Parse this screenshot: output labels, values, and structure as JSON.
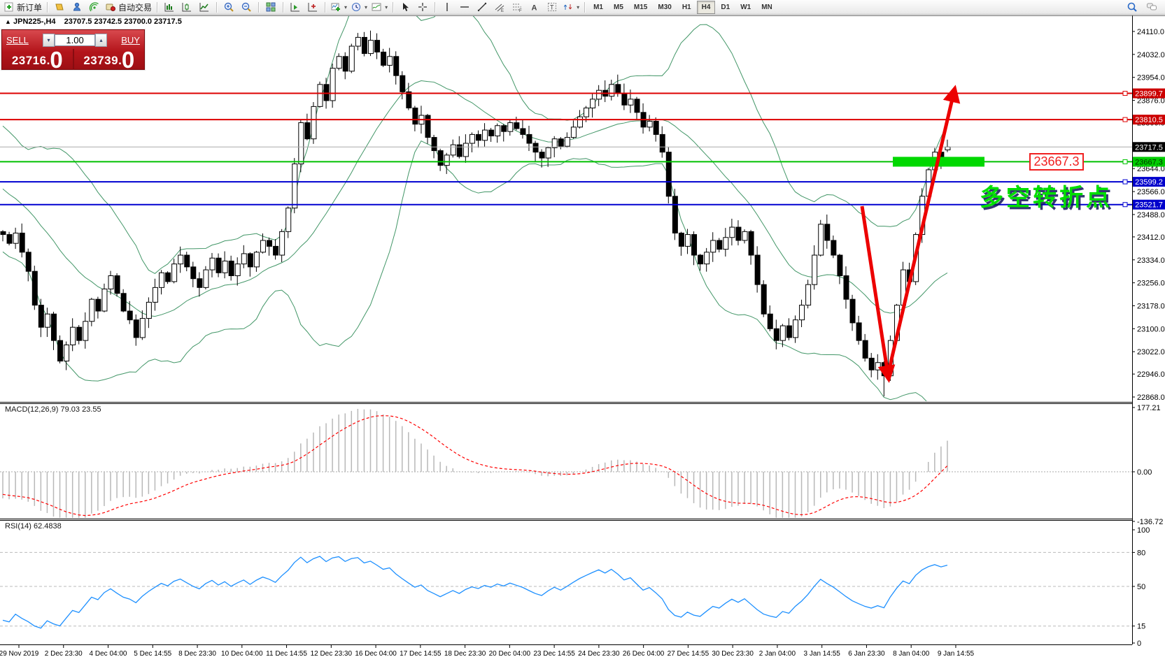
{
  "header": {
    "symbol_line": "JPN225-,H4",
    "ohlc": "23707.5 23742.5 23700.0 23717.5"
  },
  "trade_panel": {
    "sell_label": "SELL",
    "buy_label": "BUY",
    "volume": "1.00",
    "sell_int": "23716",
    "sell_big": "0",
    "buy_int": "23739",
    "buy_big": "0"
  },
  "toolbar": {
    "groups": [
      {
        "items": [
          {
            "icon": "new-order",
            "label": "新订单",
            "name": "new-order-button"
          }
        ]
      },
      {
        "items": [
          {
            "icon": "profile",
            "name": "profiles-button"
          },
          {
            "icon": "market-watch",
            "name": "market-watch-button"
          },
          {
            "icon": "signal",
            "name": "signals-button"
          },
          {
            "icon": "autotrading",
            "label": "自动交易",
            "name": "autotrading-button"
          }
        ]
      },
      {
        "items": [
          {
            "icon": "bar-chart",
            "name": "bar-chart-button"
          },
          {
            "icon": "candle-chart",
            "name": "candlestick-chart-button"
          },
          {
            "icon": "line-chart",
            "name": "line-chart-button"
          }
        ]
      },
      {
        "items": [
          {
            "icon": "zoom-in",
            "name": "zoom-in-button"
          },
          {
            "icon": "zoom-out",
            "name": "zoom-out-button"
          }
        ]
      },
      {
        "items": [
          {
            "icon": "tile-windows",
            "name": "tile-windows-button"
          }
        ]
      },
      {
        "items": [
          {
            "icon": "chart-play",
            "name": "auto-scroll-button"
          },
          {
            "icon": "chart-plus",
            "name": "chart-shift-button"
          }
        ]
      },
      {
        "items": [
          {
            "icon": "indicators",
            "dropdown": true,
            "name": "indicators-button"
          },
          {
            "icon": "periods",
            "dropdown": true,
            "name": "periods-button"
          },
          {
            "icon": "templates",
            "dropdown": true,
            "name": "templates-button"
          }
        ]
      },
      {
        "items": [
          {
            "icon": "cursor",
            "name": "cursor-button"
          },
          {
            "icon": "crosshair",
            "name": "crosshair-button"
          }
        ]
      },
      {
        "items": [
          {
            "icon": "vline",
            "name": "vertical-line-button"
          },
          {
            "icon": "hline",
            "name": "horizontal-line-button"
          },
          {
            "icon": "trendline",
            "name": "trendline-button"
          },
          {
            "icon": "channel",
            "name": "equidistant-channel-button"
          },
          {
            "icon": "fibonacci",
            "name": "fibonacci-button"
          },
          {
            "icon": "text",
            "name": "text-button"
          },
          {
            "icon": "text-label",
            "name": "text-label-button"
          },
          {
            "icon": "arrows",
            "dropdown": true,
            "name": "arrows-button"
          }
        ]
      },
      {
        "timeframes": [
          {
            "label": "M1"
          },
          {
            "label": "M5"
          },
          {
            "label": "M15"
          },
          {
            "label": "M30"
          },
          {
            "label": "H1"
          },
          {
            "label": "H4",
            "active": true
          },
          {
            "label": "D1"
          },
          {
            "label": "W1"
          },
          {
            "label": "MN"
          }
        ]
      }
    ],
    "right_items": [
      {
        "icon": "search",
        "name": "search-button"
      },
      {
        "icon": "chat",
        "name": "chat-button"
      }
    ]
  },
  "chart_data": {
    "type": "candlestick",
    "symbol": "JPN225-",
    "timeframe": "H4",
    "title": "JPN225-,H4",
    "ohlc_header": [
      "23707.5",
      "23742.5",
      "23700.0",
      "23717.5"
    ],
    "y_ticks": [
      "24110.0",
      "24032.0",
      "23954.0",
      "23876.0",
      "23800.0",
      "23644.0",
      "23566.0",
      "23488.0",
      "23412.0",
      "23334.0",
      "23256.0",
      "23178.0",
      "23100.0",
      "23022.0",
      "22946.0",
      "22868.0"
    ],
    "x_labels": [
      "29 Nov 2019",
      "2 Dec 23:30",
      "4 Dec 04:00",
      "5 Dec 14:55",
      "8 Dec 23:30",
      "10 Dec 04:00",
      "11 Dec 14:55",
      "12 Dec 23:30",
      "16 Dec 04:00",
      "17 Dec 14:55",
      "18 Dec 23:30",
      "20 Dec 04:00",
      "23 Dec 14:55",
      "24 Dec 23:30",
      "26 Dec 04:00",
      "27 Dec 14:55",
      "30 Dec 23:30",
      "2 Jan 04:00",
      "3 Jan 14:55",
      "6 Jan 23:30",
      "8 Jan 04:00",
      "9 Jan 14:55"
    ],
    "candles": {
      "pre_closes": [
        23780,
        23750,
        23720,
        23740,
        23700,
        23660,
        23680,
        23640,
        23600,
        23620,
        23580,
        23540,
        23560,
        23520,
        23480,
        23500,
        23460,
        23440,
        23460,
        23430
      ],
      "closes": [
        23420,
        23390,
        23425,
        23360,
        23295,
        23180,
        23105,
        23150,
        23060,
        22990,
        23045,
        23105,
        23060,
        23125,
        23200,
        23160,
        23235,
        23280,
        23220,
        23160,
        23130,
        23070,
        23135,
        23190,
        23240,
        23290,
        23260,
        23320,
        23350,
        23310,
        23270,
        23240,
        23300,
        23340,
        23290,
        23330,
        23280,
        23320,
        23355,
        23310,
        23360,
        23400,
        23380,
        23350,
        23430,
        23510,
        23660,
        23800,
        23745,
        23855,
        23930,
        23875,
        23985,
        24025,
        23975,
        24060,
        24090,
        24035,
        24080,
        24040,
        23995,
        24025,
        23960,
        23905,
        23850,
        23795,
        23825,
        23750,
        23705,
        23655,
        23690,
        23725,
        23685,
        23730,
        23760,
        23740,
        23775,
        23755,
        23790,
        23770,
        23800,
        23780,
        23760,
        23730,
        23700,
        23680,
        23715,
        23745,
        23720,
        23750,
        23785,
        23820,
        23850,
        23880,
        23910,
        23890,
        23930,
        23900,
        23860,
        23880,
        23835,
        23785,
        23805,
        23760,
        23700,
        23550,
        23425,
        23380,
        23420,
        23350,
        23320,
        23360,
        23400,
        23370,
        23410,
        23445,
        23400,
        23430,
        23350,
        23250,
        23150,
        23100,
        23060,
        23110,
        23070,
        23130,
        23180,
        23250,
        23350,
        23455,
        23400,
        23350,
        23280,
        23200,
        23120,
        23060,
        23000,
        22960,
        22985,
        22940,
        23060,
        23180,
        23300,
        23260,
        23420,
        23550,
        23640,
        23700,
        23670,
        23717.5
      ],
      "last_ohlc": [
        23707.5,
        23742.5,
        23700.0,
        23717.5
      ]
    },
    "bollinger": {
      "period": 20,
      "deviation": 2,
      "color": "#2E8B57"
    },
    "hlines": [
      {
        "label": "23899.7",
        "price": 23899.7,
        "color": "#dd0000",
        "width": 2,
        "label_bg": "#cc0000",
        "label_fg": "#ffffff",
        "handle": true
      },
      {
        "label": "23810.5",
        "price": 23810.5,
        "color": "#dd0000",
        "width": 2,
        "label_bg": "#cc0000",
        "label_fg": "#ffffff",
        "handle": true
      },
      {
        "label": "23667.3",
        "price": 23667.3,
        "color": "#00c000",
        "width": 2,
        "label_bg": "#00cc00",
        "label_fg": "#003300",
        "handle": true
      },
      {
        "label": "23599.2",
        "price": 23599.2,
        "color": "#0000d0",
        "width": 2,
        "label_bg": "#0000cc",
        "label_fg": "#ffffff",
        "handle": true
      },
      {
        "label": "23521.7",
        "price": 23521.7,
        "color": "#0000d0",
        "width": 2,
        "label_bg": "#0000cc",
        "label_fg": "#ffffff",
        "handle": true
      },
      {
        "label": "23717.5",
        "price": 23717.5,
        "color": "#aaaaaa",
        "width": 1,
        "label_bg": "#000000",
        "label_fg": "#ffffff",
        "current": true
      }
    ],
    "highlight_rect": {
      "price": 23667.3,
      "x": 1276,
      "width": 131,
      "height": 14,
      "color": "#00d800"
    },
    "trend_arrow": {
      "color": "#ec0000",
      "points": [
        [
          1232,
          295
        ],
        [
          1269,
          536
        ],
        [
          1363,
          133
        ]
      ]
    },
    "annotation": {
      "text": "多空转折点",
      "color": "#00df00"
    },
    "price_tag": {
      "text": "23667.3",
      "color": "#f02020"
    },
    "macd": {
      "name": "MACD(12,26,9)",
      "values": "79.03 23.55",
      "axis": [
        "177.21",
        "0.00",
        "-136.72"
      ],
      "histogram_color": "#b8b8b8",
      "signal_color": "#ff0000"
    },
    "rsi": {
      "name": "RSI(14)",
      "value": "62.4838",
      "axis": [
        "100",
        "80",
        "50",
        "15",
        "0"
      ],
      "levels": [
        80,
        50,
        15
      ],
      "color": "#1e90ff"
    }
  }
}
